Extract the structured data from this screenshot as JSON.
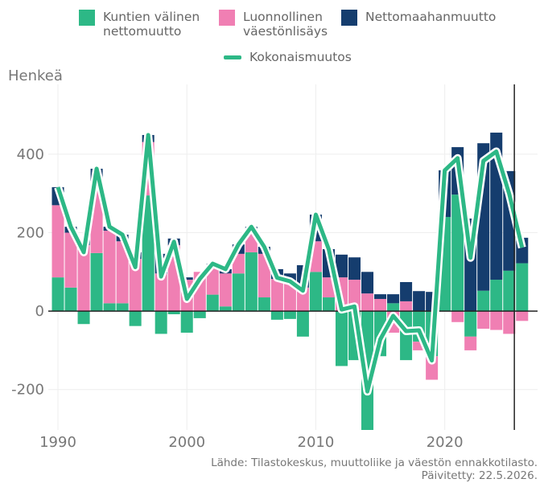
{
  "chart_data": {
    "type": "bar",
    "y_label": "Henkeä",
    "source": "Lähde: Tilastokeskus, muuttoliike ja väestön ennakkotilasto.",
    "updated": "Päivitetty: 22.5.2026.",
    "x": [
      1990,
      1991,
      1992,
      1993,
      1994,
      1995,
      1996,
      1997,
      1998,
      1999,
      2000,
      2001,
      2002,
      2003,
      2004,
      2005,
      2006,
      2007,
      2008,
      2009,
      2010,
      2011,
      2012,
      2013,
      2014,
      2015,
      2016,
      2017,
      2018,
      2019,
      2020,
      2021,
      2022,
      2023,
      2024,
      2025,
      2026
    ],
    "series": [
      {
        "name": "Kuntien välinen nettomuutto",
        "color": "#2db886",
        "values": [
          86,
          60,
          -33,
          148,
          20,
          20,
          -38,
          295,
          -58,
          -8,
          -55,
          -18,
          42,
          12,
          96,
          150,
          35,
          -22,
          -20,
          -65,
          100,
          35,
          -140,
          -125,
          -305,
          -115,
          20,
          -125,
          -78,
          -115,
          240,
          297,
          -65,
          52,
          80,
          103,
          122
        ]
      },
      {
        "name": "Luonnollinen väestönlisäys",
        "color": "#f07fb3",
        "values": [
          184,
          140,
          168,
          184,
          185,
          158,
          133,
          136,
          96,
          168,
          80,
          100,
          75,
          84,
          50,
          49,
          111,
          82,
          72,
          60,
          78,
          51,
          86,
          80,
          45,
          31,
          -55,
          25,
          -22,
          -60,
          0,
          -28,
          -35,
          -45,
          -48,
          -58,
          -25
        ]
      },
      {
        "name": "Nettomaahanmuutto",
        "color": "#153d6e",
        "values": [
          46,
          15,
          15,
          31,
          10,
          17,
          17,
          18,
          50,
          17,
          6,
          0,
          4,
          11,
          24,
          16,
          18,
          25,
          24,
          57,
          68,
          72,
          58,
          57,
          55,
          12,
          23,
          49,
          51,
          49,
          119,
          121,
          236,
          376,
          375,
          254,
          65
        ]
      },
      {
        "name": "Kokonaismuutos",
        "color": "#2db886",
        "type": "line",
        "values": [
          316,
          215,
          150,
          363,
          215,
          195,
          112,
          449,
          88,
          177,
          31,
          82,
          121,
          107,
          170,
          215,
          164,
          85,
          76,
          52,
          246,
          158,
          4,
          12,
          -205,
          -72,
          -12,
          -51,
          -49,
          -126,
          359,
          390,
          136,
          383,
          407,
          299,
          162
        ]
      }
    ],
    "xlim": [
      1989.25,
      2027.2
    ],
    "xticks": [
      1990,
      2000,
      2010,
      2020
    ],
    "ylim": [
      -303,
      578
    ],
    "yticks": [
      -200,
      0,
      200,
      400
    ],
    "vline_x": 2025.4,
    "grid": true
  }
}
